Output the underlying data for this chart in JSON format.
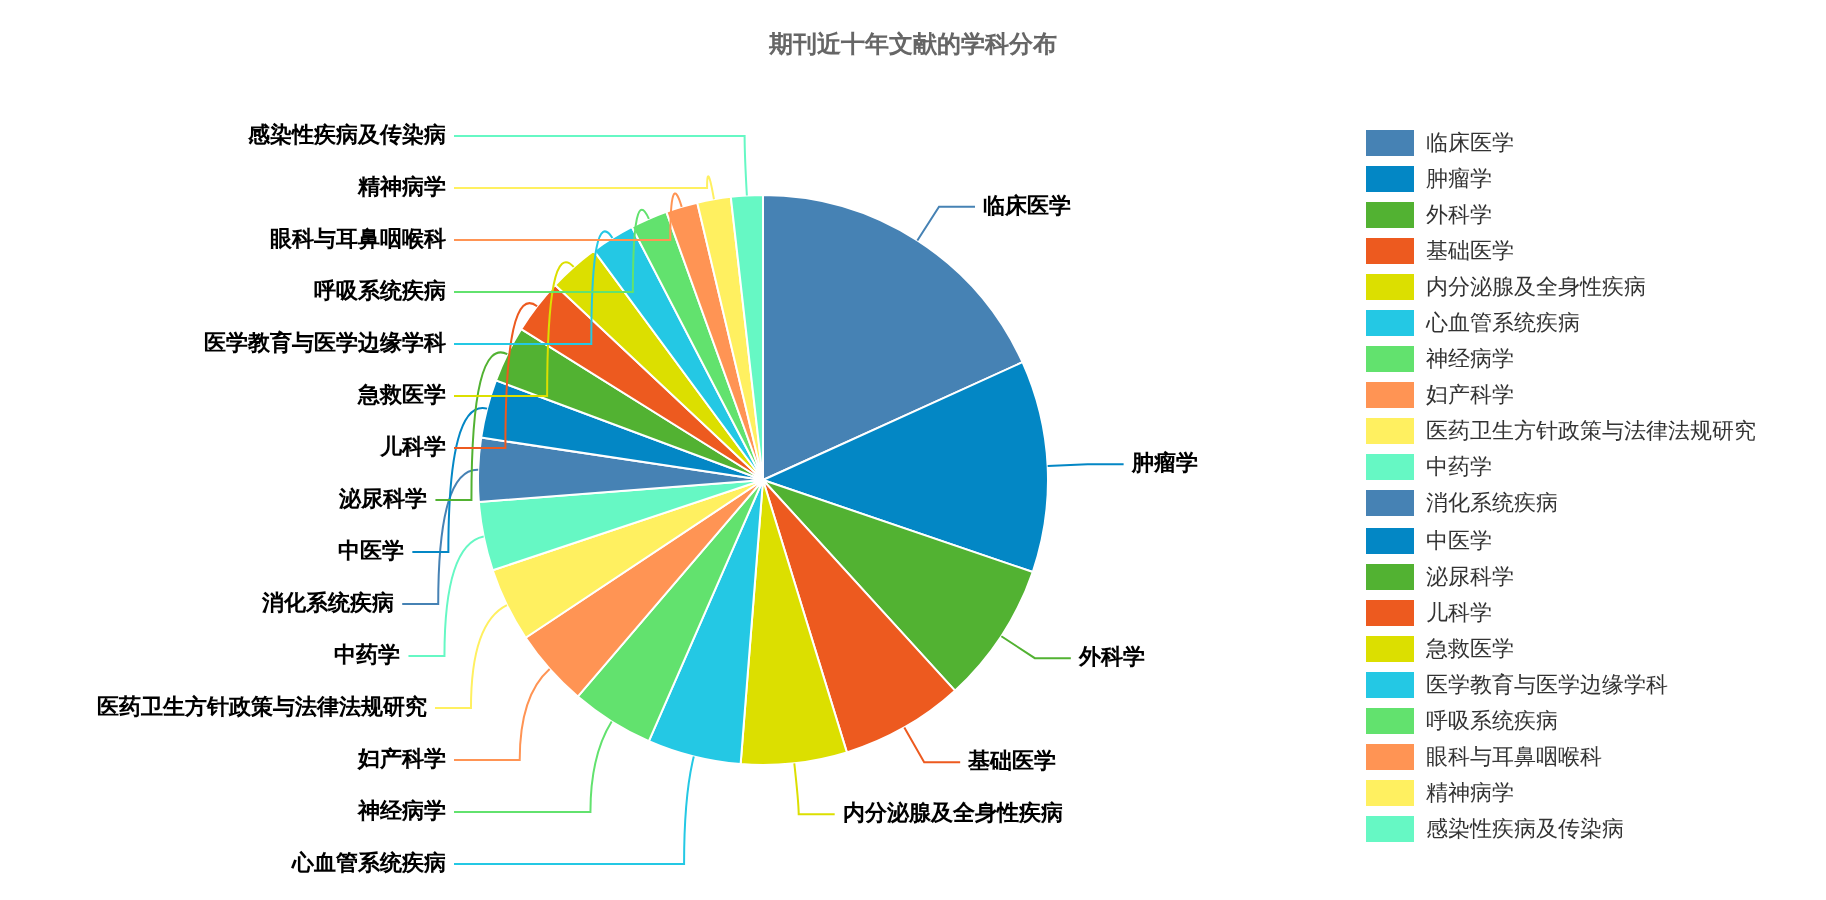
{
  "chart_data": {
    "type": "pie",
    "title": "期刊近十年文献的学科分布",
    "legend": "right",
    "categories": [
      "临床医学",
      "肿瘤学",
      "外科学",
      "基础医学",
      "内分泌腺及全身性疾病",
      "心血管系统疾病",
      "神经病学",
      "妇产科学",
      "医药卫生方针政策与法律法规研究",
      "中药学",
      "消化系统疾病",
      "中医学",
      "泌尿科学",
      "儿科学",
      "急救医学",
      "医学教育与医学边缘学科",
      "呼吸系统疾病",
      "眼科与耳鼻咽喉科",
      "精神病学",
      "感染性疾病及传染病"
    ],
    "values": [
      18.2,
      12,
      8,
      7,
      6,
      5.3,
      4.7,
      4.4,
      4.2,
      3.9,
      3.6,
      3.3,
      3.2,
      3.1,
      2.9,
      2.5,
      2.1,
      1.8,
      1.9,
      1.8
    ],
    "colors": [
      "#4682b4",
      "#0387c5",
      "#52b232",
      "#ed5a1f",
      "#dcdf00",
      "#24c8e4",
      "#62e26e",
      "#ff9454",
      "#fff060",
      "#66f8c4",
      "#4682b4",
      "#0387c5",
      "#52b232",
      "#ed5a1f",
      "#dcdf00",
      "#24c8e4",
      "#62e26e",
      "#ff9454",
      "#fff060",
      "#66f8c4"
    ]
  }
}
